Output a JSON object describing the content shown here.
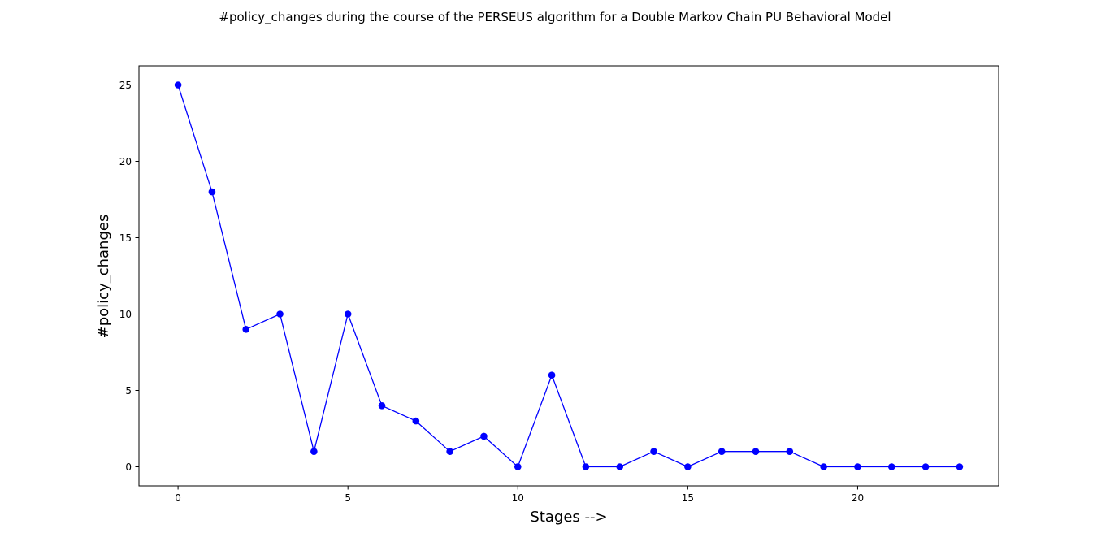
{
  "chart_data": {
    "type": "line",
    "title": "#policy_changes during the course of the PERSEUS algorithm for a Double Markov Chain PU Behavioral Model",
    "xlabel": "Stages -->",
    "ylabel": "#policy_changes",
    "xlim": [
      -1.15,
      24.15
    ],
    "ylim": [
      -1.25,
      26.25
    ],
    "xticks": [
      0,
      5,
      10,
      15,
      20
    ],
    "yticks": [
      0,
      5,
      10,
      15,
      20,
      25
    ],
    "grid": false,
    "series": [
      {
        "color": "#0000ff",
        "marker": "circle",
        "x": [
          0,
          1,
          2,
          3,
          4,
          5,
          6,
          7,
          8,
          9,
          10,
          11,
          12,
          13,
          14,
          15,
          16,
          17,
          18,
          19,
          20,
          21,
          22,
          23
        ],
        "y": [
          25,
          18,
          9,
          10,
          1,
          10,
          4,
          3,
          1,
          2,
          0,
          6,
          0,
          0,
          1,
          0,
          1,
          1,
          1,
          0,
          0,
          0,
          0,
          0
        ]
      }
    ]
  }
}
